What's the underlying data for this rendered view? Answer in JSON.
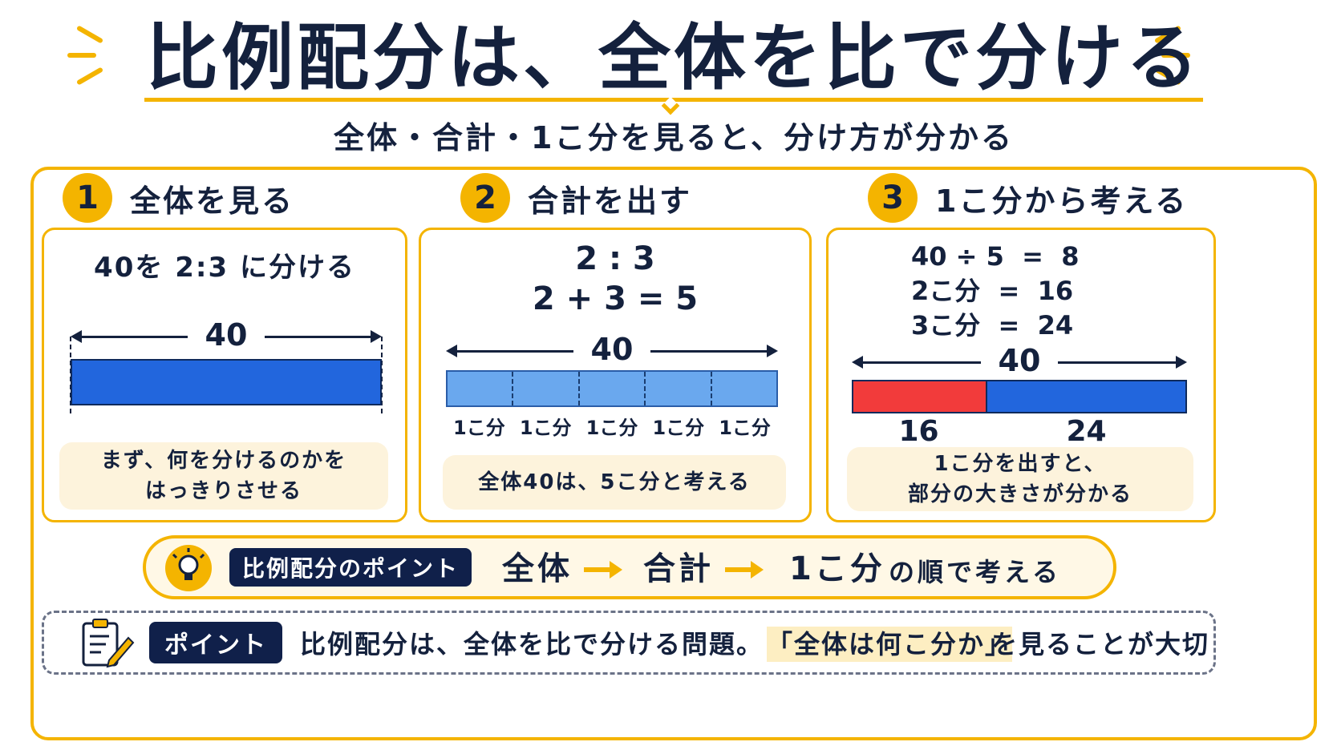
{
  "title": "比例配分は、全体を比で分ける",
  "subtitle": "全体・合計・1こ分を見ると、分け方が分かる",
  "steps": [
    {
      "num": "1",
      "label": "全体を見る",
      "problem": "40を 2:3 に分ける",
      "total": "40",
      "note_line1": "まず、何を分けるのかを",
      "note_line2": "はっきりさせる"
    },
    {
      "num": "2",
      "label": "合計を出す",
      "ratio": "2 : 3",
      "sum": "2 + 3 = 5",
      "total": "40",
      "unit_labels": [
        "1こ分",
        "1こ分",
        "1こ分",
        "1こ分",
        "1こ分"
      ],
      "note": "全体40は、5こ分と考える"
    },
    {
      "num": "3",
      "label": "1こ分から考える",
      "eq1": "40 ÷ 5  =  8",
      "eq2": "2こ分  =  16",
      "eq3": "3こ分  =  24",
      "total": "40",
      "part1": "16",
      "part2": "24",
      "note_line1": "1こ分を出すと、",
      "note_line2": "部分の大きさが分かる"
    }
  ],
  "point_bar": {
    "tag": "比例配分のポイント",
    "flow1": "全体",
    "flow2": "合計",
    "flow3": "1こ分",
    "tail": "の順で考える"
  },
  "tip": {
    "tag": "ポイント",
    "text_before": "比例配分は、全体を比で分ける問題。",
    "highlight": "「全体は何こ分か」",
    "text_after": "を見ることが大切"
  },
  "colors": {
    "accent": "#f4b400",
    "navy": "#14213d",
    "bar_blue": "#2266dd",
    "bar_light": "#6aa8ee",
    "bar_red": "#f23b3b",
    "note_bg": "#fdf3dc"
  },
  "icons": [
    "lightbulb-icon",
    "clipboard-pencil-icon"
  ]
}
